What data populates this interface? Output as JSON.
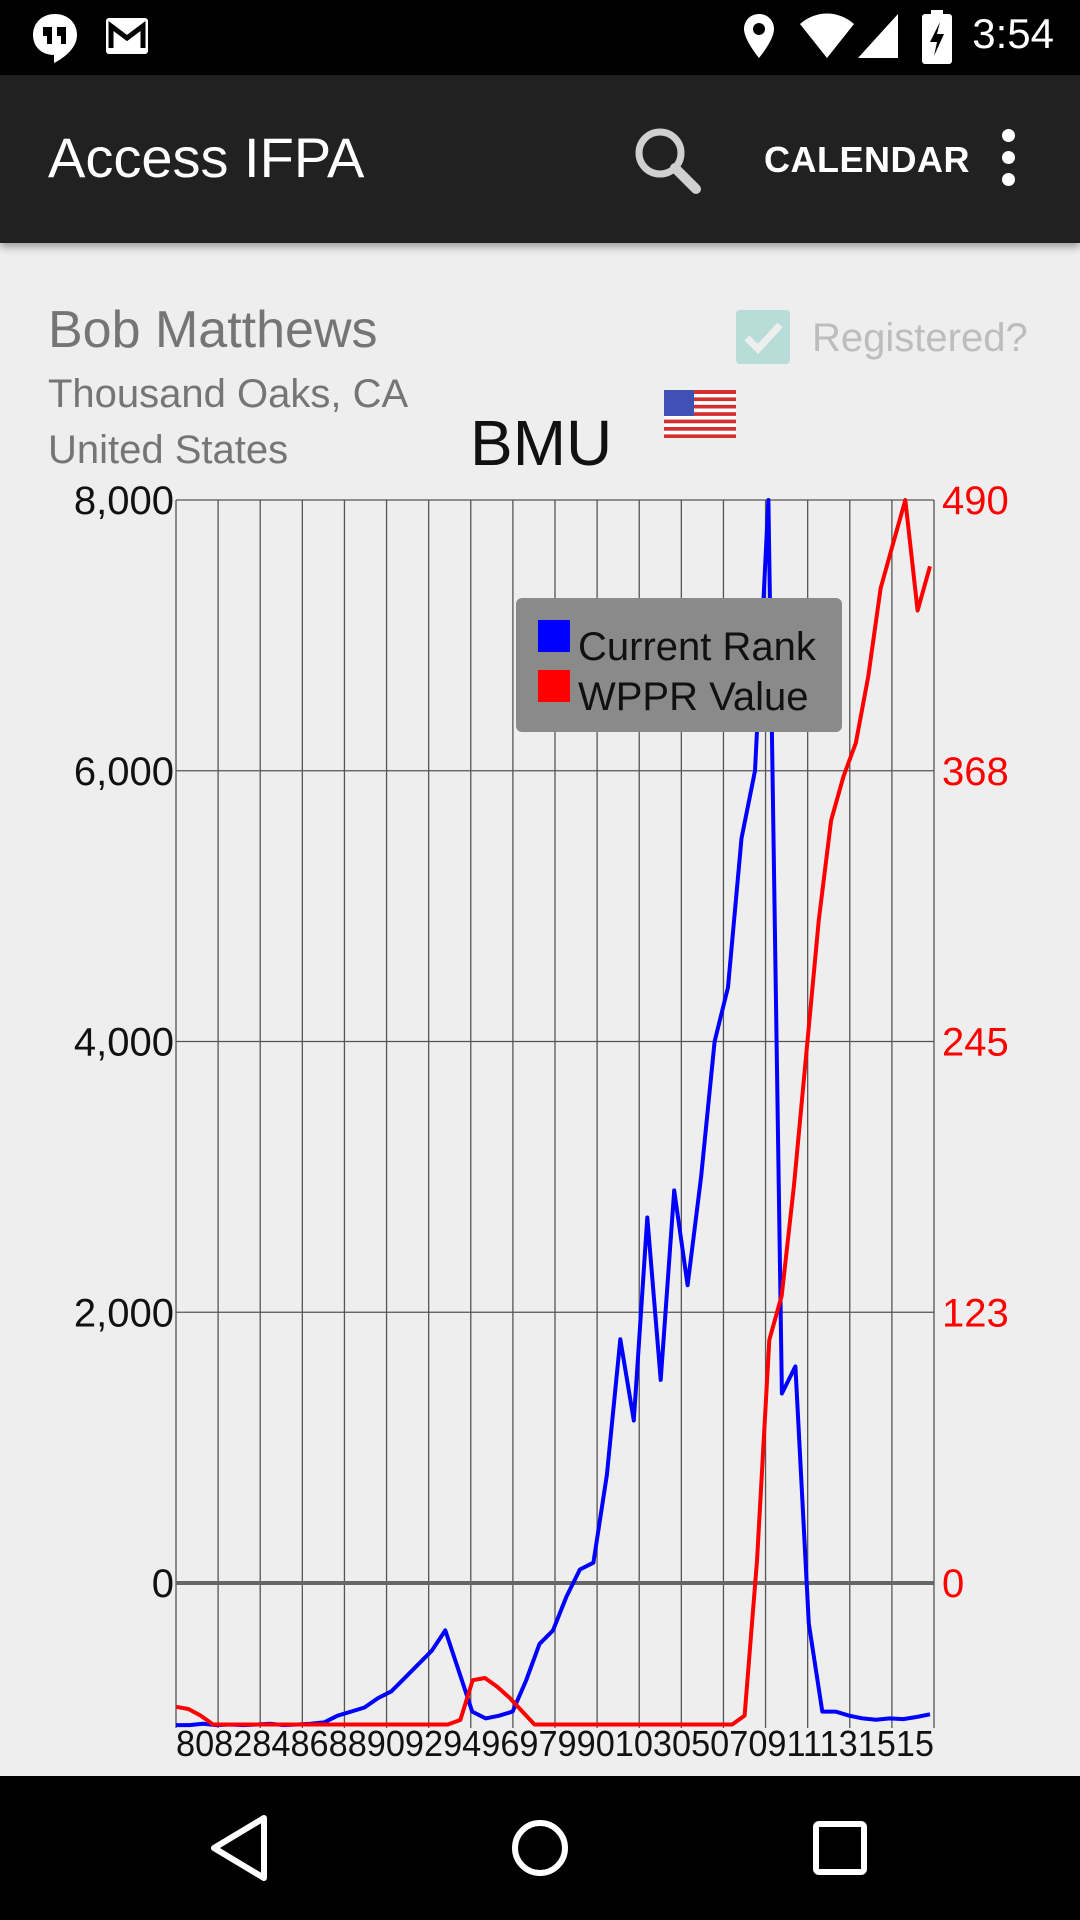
{
  "status_bar": {
    "time": "3:54",
    "icons": [
      "hangouts-icon",
      "gmail-icon",
      "location-icon",
      "wifi-icon",
      "signal-icon",
      "battery-charging-icon"
    ]
  },
  "action_bar": {
    "title": "Access IFPA",
    "search_icon": "search-icon",
    "calendar_label": "CALENDAR",
    "overflow_icon": "more-vert-icon"
  },
  "player": {
    "name": "Bob Matthews",
    "city": "Thousand Oaks, CA",
    "country": "United States",
    "registered_label": "Registered?",
    "registered_checked": true,
    "flag_icon": "us-flag-icon",
    "initials": "BMU"
  },
  "colors": {
    "rank": "#0000ff",
    "wppr": "#ff0000",
    "checkbox": "#80cbc4"
  },
  "chart_data": {
    "type": "line",
    "title": "BMU",
    "legend": {
      "placement": "top-right",
      "entries": [
        "Current Rank",
        "WPPR Value"
      ]
    },
    "grid": true,
    "y_left": {
      "ticks": [
        "8,000",
        "6,000",
        "4,000",
        "2,000",
        "0"
      ],
      "ylim": [
        -1050,
        8000
      ]
    },
    "y_right": {
      "ticks": [
        "490",
        "368",
        "245",
        "123",
        "0"
      ],
      "ylim": [
        -64,
        490
      ]
    },
    "x_tick_text": "8082848688909294969799010305070911131515",
    "series": [
      {
        "name": "Current Rank",
        "axis": "left",
        "points": [
          [
            0,
            -1050
          ],
          [
            1,
            -1050
          ],
          [
            2,
            -1040
          ],
          [
            3,
            -1050
          ],
          [
            4,
            -1045
          ],
          [
            5,
            -1050
          ],
          [
            6,
            -1045
          ],
          [
            7,
            -1040
          ],
          [
            8,
            -1050
          ],
          [
            9,
            -1045
          ],
          [
            10,
            -1040
          ],
          [
            11,
            -1030
          ],
          [
            12,
            -980
          ],
          [
            13,
            -950
          ],
          [
            14,
            -920
          ],
          [
            15,
            -850
          ],
          [
            16,
            -800
          ],
          [
            17,
            -700
          ],
          [
            18,
            -600
          ],
          [
            19,
            -500
          ],
          [
            20,
            -350
          ],
          [
            21,
            -650
          ],
          [
            22,
            -950
          ],
          [
            23,
            -1000
          ],
          [
            24,
            -980
          ],
          [
            25,
            -950
          ],
          [
            26,
            -720
          ],
          [
            27,
            -450
          ],
          [
            28,
            -350
          ],
          [
            29,
            -100
          ],
          [
            30,
            100
          ],
          [
            31,
            150
          ],
          [
            32,
            800
          ],
          [
            33,
            1800
          ],
          [
            34,
            1200
          ],
          [
            35,
            2700
          ],
          [
            36,
            1500
          ],
          [
            37,
            2900
          ],
          [
            38,
            2200
          ],
          [
            39,
            3000
          ],
          [
            40,
            4000
          ],
          [
            41,
            4400
          ],
          [
            42,
            5500
          ],
          [
            43,
            6000
          ],
          [
            44,
            8000
          ],
          [
            45,
            1400
          ],
          [
            46,
            1600
          ],
          [
            47,
            -300
          ],
          [
            48,
            -950
          ],
          [
            49,
            -950
          ],
          [
            50,
            -980
          ],
          [
            51,
            -1000
          ],
          [
            52,
            -1010
          ],
          [
            53,
            -1000
          ],
          [
            54,
            -1005
          ],
          [
            55,
            -990
          ],
          [
            56,
            -970
          ]
        ]
      },
      {
        "name": "WPPR Value",
        "axis": "right",
        "points": [
          [
            0,
            -56
          ],
          [
            1,
            -57
          ],
          [
            2,
            -60
          ],
          [
            3,
            -64
          ],
          [
            4,
            -64
          ],
          [
            5,
            -64
          ],
          [
            6,
            -64
          ],
          [
            7,
            -64
          ],
          [
            8,
            -64
          ],
          [
            9,
            -64
          ],
          [
            10,
            -64
          ],
          [
            11,
            -64
          ],
          [
            12,
            -64
          ],
          [
            13,
            -64
          ],
          [
            14,
            -64
          ],
          [
            15,
            -64
          ],
          [
            16,
            -64
          ],
          [
            17,
            -64
          ],
          [
            18,
            -64
          ],
          [
            19,
            -64
          ],
          [
            20,
            -64
          ],
          [
            21,
            -64
          ],
          [
            22,
            -64
          ],
          [
            23,
            -62
          ],
          [
            24,
            -44
          ],
          [
            25,
            -43
          ],
          [
            26,
            -47
          ],
          [
            27,
            -52
          ],
          [
            28,
            -58
          ],
          [
            29,
            -64
          ],
          [
            30,
            -64
          ],
          [
            31,
            -64
          ],
          [
            32,
            -64
          ],
          [
            33,
            -64
          ],
          [
            34,
            -64
          ],
          [
            35,
            -64
          ],
          [
            36,
            -64
          ],
          [
            37,
            -64
          ],
          [
            38,
            -64
          ],
          [
            39,
            -64
          ],
          [
            40,
            -64
          ],
          [
            41,
            -64
          ],
          [
            42,
            -64
          ],
          [
            43,
            -64
          ],
          [
            44,
            -64
          ],
          [
            45,
            -64
          ],
          [
            46,
            -60
          ],
          [
            47,
            10
          ],
          [
            48,
            110
          ],
          [
            49,
            130
          ],
          [
            50,
            180
          ],
          [
            51,
            240
          ],
          [
            52,
            300
          ],
          [
            53,
            345
          ],
          [
            54,
            365
          ],
          [
            55,
            380
          ],
          [
            56,
            410
          ],
          [
            57,
            450
          ],
          [
            58,
            470
          ],
          [
            59,
            490
          ],
          [
            60,
            440
          ],
          [
            61,
            460
          ]
        ]
      }
    ]
  },
  "nav_bar": {
    "back": "back-icon",
    "home": "home-icon",
    "recents": "recents-icon"
  }
}
